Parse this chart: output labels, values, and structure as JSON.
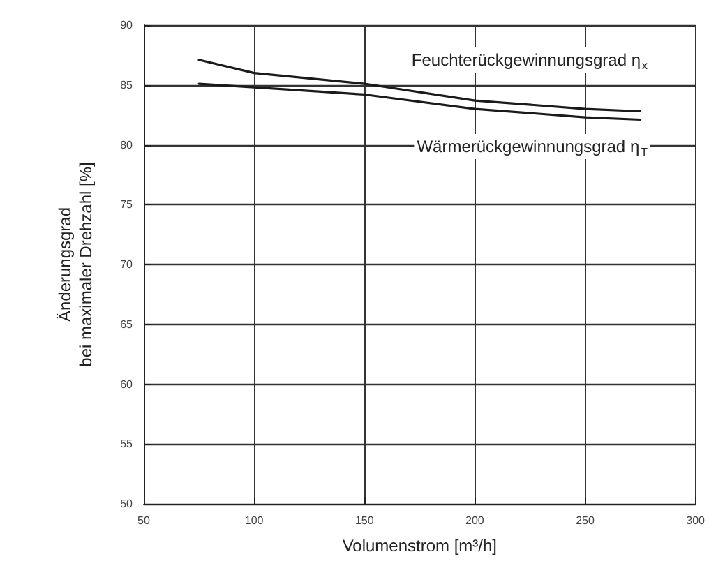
{
  "chart_data": {
    "type": "line",
    "xlabel": "Volumenstrom [m³/h]",
    "ylabel": "Änderungsgrad\nbei maximaler Drehzahl [%]",
    "x": [
      75,
      100,
      150,
      200,
      250,
      275
    ],
    "series": [
      {
        "color": "#1a1a1a",
        "values": [
          87.1,
          86.0,
          85.1,
          83.7,
          83.0,
          82.8
        ]
      },
      {
        "color": "#1a1a1a",
        "values": [
          85.1,
          84.8,
          84.2,
          83.0,
          82.3,
          82.1
        ]
      }
    ],
    "annotations": [
      "Feuchterückgewinnungsgrad η$_{x}$",
      "Wärmerückgewinnungsgrad η$_{T}$"
    ],
    "xlim": [
      50,
      300
    ],
    "xticks": [
      50,
      100,
      150,
      200,
      250,
      300
    ],
    "ylim": [
      50,
      90
    ],
    "yticks": [
      50,
      55,
      60,
      65,
      70,
      75,
      80,
      85,
      90
    ],
    "grid": true,
    "marker": "none",
    "line_style": "solid"
  }
}
